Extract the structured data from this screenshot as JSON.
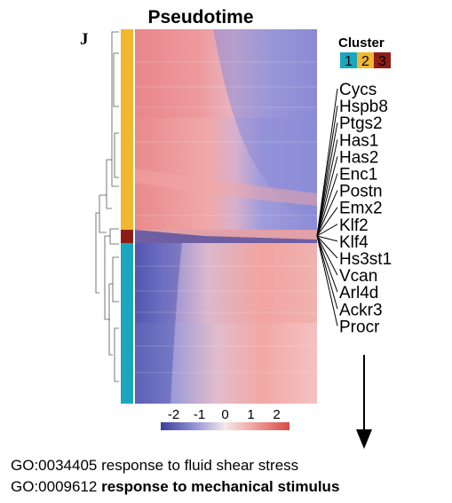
{
  "panel_label": "J",
  "chart_data": {
    "type": "heatmap",
    "title": "Pseudotime",
    "legend_title": "Cluster",
    "clusters": [
      {
        "label": "1",
        "color": "#1aa7bd"
      },
      {
        "label": "2",
        "color": "#f2b630"
      },
      {
        "label": "3",
        "color": "#8e1d17"
      }
    ],
    "row_cluster_order": [
      "2",
      "3",
      "1"
    ],
    "genes": [
      "Cycs",
      "Hspb8",
      "Ptgs2",
      "Has1",
      "Has2",
      "Enc1",
      "Postn",
      "Emx2",
      "Klf2",
      "Klf4",
      "Hs3st1",
      "Vcan",
      "Arl4d",
      "Ackr3",
      "Procr"
    ],
    "color_scale": {
      "ticks": [
        "-2",
        "-1",
        "0",
        "1",
        "2"
      ],
      "range": [
        -2.5,
        2.5
      ],
      "low": "#3b3f9a",
      "mid": "#f5e8ea",
      "high": "#d84a47"
    },
    "x_axis": "pseudotime (no ticks)",
    "dendrogram": "left, rows clustered"
  },
  "go_terms": [
    {
      "id": "GO:0034405",
      "term": "response to fluid shear stress",
      "bold": false
    },
    {
      "id": "GO:0009612",
      "term": "response to mechanical stimulus",
      "bold": true
    }
  ]
}
